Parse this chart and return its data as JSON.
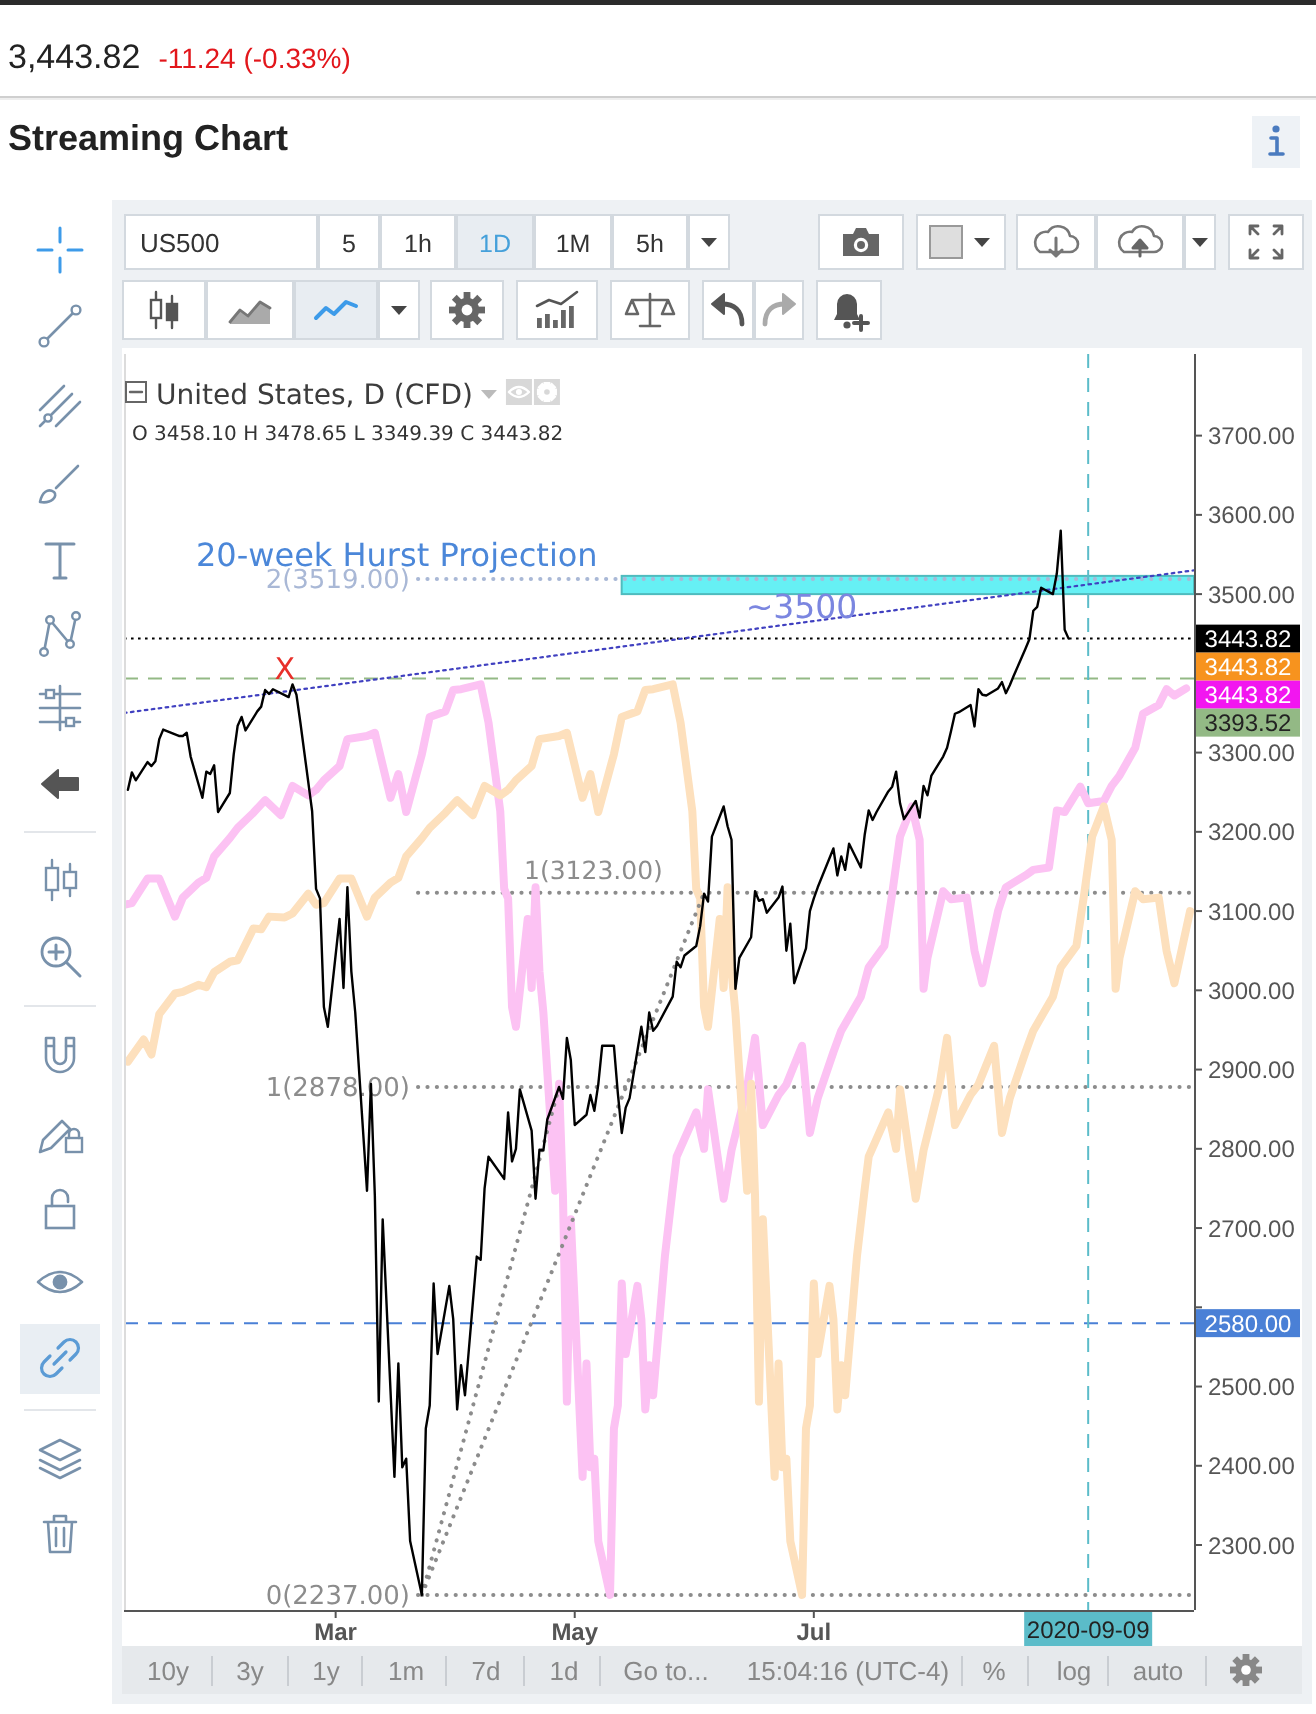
{
  "chart_data": {
    "type": "line",
    "title": "Streaming Chart",
    "xlim": [
      "2020-01-07",
      "2020-10-06"
    ],
    "xticks": [
      {
        "value": "2020-03-01",
        "label": "Mar"
      },
      {
        "value": "2020-05-01",
        "label": "May"
      },
      {
        "value": "2020-07-01",
        "label": "Jul"
      }
    ],
    "ylim": [
      2218,
      3803
    ],
    "yticks": [
      {
        "value": 2300,
        "label": "2300.00"
      },
      {
        "value": 2400,
        "label": "2400.00"
      },
      {
        "value": 2500,
        "label": "2500.00"
      },
      {
        "value": 2600,
        "label": null
      },
      {
        "value": 2700,
        "label": "2700.00"
      },
      {
        "value": 2800,
        "label": "2800.00"
      },
      {
        "value": 2900,
        "label": "2900.00"
      },
      {
        "value": 3000,
        "label": "3000.00"
      },
      {
        "value": 3100,
        "label": "3100.00"
      },
      {
        "value": 3200,
        "label": "3200.00"
      },
      {
        "value": 3300,
        "label": "3300.00"
      },
      {
        "value": 3400,
        "label": null
      },
      {
        "value": 3500,
        "label": "3500.00"
      },
      {
        "value": 3600,
        "label": "3600.00"
      },
      {
        "value": 3700,
        "label": "3700.00"
      }
    ],
    "series": [
      {
        "color": "#fcc2f3",
        "x": [
          "2020-01-07",
          "2020-01-09",
          "2020-01-13",
          "2020-01-16",
          "2020-01-20",
          "2020-01-22",
          "2020-01-26",
          "2020-01-28",
          "2020-01-30",
          "2020-02-03",
          "2020-02-05",
          "2020-02-09",
          "2020-02-12",
          "2020-02-16",
          "2020-02-19",
          "2020-02-23",
          "2020-02-25",
          "2020-02-27",
          "2020-03-02",
          "2020-03-04",
          "2020-03-09",
          "2020-03-11",
          "2020-03-15",
          "2020-03-17",
          "2020-03-19",
          "2020-03-23",
          "2020-03-25",
          "2020-03-29",
          "2020-03-31",
          "2020-04-02",
          "2020-04-07",
          "2020-04-09",
          "2020-04-12",
          "2020-04-13",
          "2020-04-14",
          "2020-04-15",
          "2020-04-16",
          "2020-04-19",
          "2020-04-20",
          "2020-04-21",
          "2020-04-22",
          "2020-04-23",
          "2020-04-26",
          "2020-04-27",
          "2020-04-28",
          "2020-04-29",
          "2020-04-30",
          "2020-05-03",
          "2020-05-04",
          "2020-05-05",
          "2020-05-06",
          "2020-05-07",
          "2020-05-10",
          "2020-05-11",
          "2020-05-12",
          "2020-05-13",
          "2020-05-14",
          "2020-05-17",
          "2020-05-18",
          "2020-05-19",
          "2020-05-20",
          "2020-05-21",
          "2020-05-24",
          "2020-05-26",
          "2020-05-27",
          "2020-06-01",
          "2020-06-03",
          "2020-06-04",
          "2020-06-08",
          "2020-06-10",
          "2020-06-14",
          "2020-06-16",
          "2020-06-18",
          "2020-06-22",
          "2020-06-24",
          "2020-06-28",
          "2020-06-30",
          "2020-07-02",
          "2020-07-06",
          "2020-07-08",
          "2020-07-13",
          "2020-07-15",
          "2020-07-19",
          "2020-07-21",
          "2020-07-23",
          "2020-07-26",
          "2020-07-28",
          "2020-07-29",
          "2020-07-30",
          "2020-08-03",
          "2020-08-05",
          "2020-08-09",
          "2020-08-11",
          "2020-08-13",
          "2020-08-17",
          "2020-08-19",
          "2020-08-24",
          "2020-08-26",
          "2020-08-30",
          "2020-09-01",
          "2020-09-03",
          "2020-09-07",
          "2020-09-09",
          "2020-09-13",
          "2020-09-15",
          "2020-09-17",
          "2020-09-21",
          "2020-09-23",
          "2020-09-27",
          "2020-09-29",
          "2020-10-01",
          "2020-10-04"
        ],
        "values": [
          3108,
          3110,
          3141,
          3141,
          3093,
          3117,
          3136,
          3142,
          3169,
          3192,
          3205,
          3224,
          3240,
          3221,
          3258,
          3246,
          3253,
          3265,
          3283,
          3317,
          3321,
          3325,
          3243,
          3273,
          3225,
          3298,
          3345,
          3352,
          3379,
          3380,
          3386,
          3338,
          3226,
          3128,
          3116,
          2979,
          2954,
          3090,
          3003,
          3130,
          3024,
          2972,
          2747,
          2882,
          2741,
          2481,
          2711,
          2386,
          2529,
          2398,
          2409,
          2305,
          2237,
          2447,
          2476,
          2630,
          2541,
          2627,
          2585,
          2471,
          2527,
          2489,
          2664,
          2750,
          2790,
          2846,
          2800,
          2875,
          2737,
          2798,
          2878,
          2940,
          2830,
          2868,
          2881,
          2930,
          2820,
          2864,
          2922,
          2949,
          2992,
          3029,
          3056,
          3122,
          3194,
          3232,
          3190,
          3002,
          3041,
          3125,
          3115,
          3117,
          3050,
          3009,
          3100,
          3130,
          3145,
          3152,
          3155,
          3227,
          3225,
          3257,
          3236,
          3239,
          3258,
          3271,
          3306,
          3349,
          3360,
          3380,
          3372,
          3381
        ]
      },
      {
        "color": "#fde0bd",
        "x": [
          "2020-01-08",
          "2020-01-12",
          "2020-01-14",
          "2020-01-16",
          "2020-01-20",
          "2020-01-22",
          "2020-01-26",
          "2020-01-28",
          "2020-01-30",
          "2020-02-03",
          "2020-02-05",
          "2020-02-09",
          "2020-02-11",
          "2020-02-13",
          "2020-02-17",
          "2020-02-19",
          "2020-02-23",
          "2020-02-25",
          "2020-02-27",
          "2020-03-02",
          "2020-03-05",
          "2020-03-09",
          "2020-03-11",
          "2020-03-15",
          "2020-03-17",
          "2020-03-19",
          "2020-03-23",
          "2020-03-25",
          "2020-03-29",
          "2020-04-01",
          "2020-04-05",
          "2020-04-08",
          "2020-04-12",
          "2020-04-14",
          "2020-04-16",
          "2020-04-20",
          "2020-04-22",
          "2020-04-27",
          "2020-04-29",
          "2020-05-03",
          "2020-05-05",
          "2020-05-07",
          "2020-05-11",
          "2020-05-13",
          "2020-05-17",
          "2020-05-19",
          "2020-05-21",
          "2020-05-26",
          "2020-05-28",
          "2020-05-31",
          "2020-06-01",
          "2020-06-02",
          "2020-06-03",
          "2020-06-04",
          "2020-06-07",
          "2020-06-08",
          "2020-06-09",
          "2020-06-10",
          "2020-06-11",
          "2020-06-14",
          "2020-06-15",
          "2020-06-16",
          "2020-06-17",
          "2020-06-18",
          "2020-06-21",
          "2020-06-22",
          "2020-06-23",
          "2020-06-24",
          "2020-06-25",
          "2020-06-28",
          "2020-06-29",
          "2020-06-30",
          "2020-07-01",
          "2020-07-02",
          "2020-07-05",
          "2020-07-06",
          "2020-07-07",
          "2020-07-08",
          "2020-07-09",
          "2020-07-12",
          "2020-07-14",
          "2020-07-15",
          "2020-07-20",
          "2020-07-22",
          "2020-07-23",
          "2020-07-27",
          "2020-07-29",
          "2020-08-02",
          "2020-08-04",
          "2020-08-06",
          "2020-08-10",
          "2020-08-12",
          "2020-08-16",
          "2020-08-18",
          "2020-08-20",
          "2020-08-24",
          "2020-08-26",
          "2020-08-31",
          "2020-09-02",
          "2020-09-06",
          "2020-09-08",
          "2020-09-10",
          "2020-09-13",
          "2020-09-15",
          "2020-09-16",
          "2020-09-17",
          "2020-09-21",
          "2020-09-23",
          "2020-09-27",
          "2020-09-29",
          "2020-10-01",
          "2020-10-05"
        ],
        "values": [
          2910,
          2938,
          2919,
          2970,
          2996,
          2998,
          3007,
          3004,
          3023,
          3036,
          3038,
          3078,
          3077,
          3093,
          3092,
          3097,
          3122,
          3108,
          3110,
          3141,
          3141,
          3093,
          3117,
          3136,
          3142,
          3169,
          3192,
          3205,
          3224,
          3240,
          3221,
          3258,
          3246,
          3253,
          3265,
          3283,
          3317,
          3321,
          3325,
          3243,
          3273,
          3225,
          3298,
          3345,
          3352,
          3379,
          3380,
          3386,
          3338,
          3226,
          3128,
          3116,
          2979,
          2954,
          3090,
          3003,
          3130,
          3024,
          2972,
          2747,
          2882,
          2741,
          2481,
          2711,
          2386,
          2529,
          2398,
          2409,
          2305,
          2237,
          2447,
          2476,
          2630,
          2541,
          2627,
          2585,
          2471,
          2527,
          2489,
          2664,
          2750,
          2790,
          2846,
          2800,
          2875,
          2737,
          2798,
          2878,
          2940,
          2830,
          2868,
          2881,
          2930,
          2820,
          2864,
          2922,
          2949,
          2992,
          3029,
          3056,
          3122,
          3194,
          3232,
          3190,
          3002,
          3041,
          3125,
          3115,
          3117,
          3050,
          3009,
          3100
        ]
      },
      {
        "type": "line",
        "color": "#4040c0",
        "line_style": "dotted",
        "x": [
          "2020-01-07",
          "2020-10-06"
        ],
        "values": [
          3350,
          3530
        ]
      },
      {
        "type": "line",
        "color": "#8c8c8c",
        "line_style": "dotted",
        "x": [
          "2020-03-23",
          "2020-04-27"
        ],
        "values": [
          2237,
          2878
        ]
      },
      {
        "type": "line",
        "color": "#8c8c8c",
        "line_style": "dotted",
        "x": [
          "2020-03-23",
          "2020-06-03"
        ],
        "values": [
          2237,
          3123
        ]
      },
      {
        "color": "#000000",
        "x": [
          "2020-01-08",
          "2020-01-09",
          "2020-01-10",
          "2020-01-13",
          "2020-01-14",
          "2020-01-15",
          "2020-01-16",
          "2020-01-17",
          "2020-01-21",
          "2020-01-22",
          "2020-01-23",
          "2020-01-24",
          "2020-01-27",
          "2020-01-28",
          "2020-01-29",
          "2020-01-30",
          "2020-01-31",
          "2020-02-03",
          "2020-02-04",
          "2020-02-05",
          "2020-02-06",
          "2020-02-07",
          "2020-02-10",
          "2020-02-11",
          "2020-02-12",
          "2020-02-13",
          "2020-02-14",
          "2020-02-18",
          "2020-02-19",
          "2020-02-20",
          "2020-02-21",
          "2020-02-24",
          "2020-02-25",
          "2020-02-26",
          "2020-02-27",
          "2020-02-28",
          "2020-03-02",
          "2020-03-03",
          "2020-03-04",
          "2020-03-05",
          "2020-03-06",
          "2020-03-09",
          "2020-03-10",
          "2020-03-11",
          "2020-03-12",
          "2020-03-13",
          "2020-03-16",
          "2020-03-17",
          "2020-03-18",
          "2020-03-19",
          "2020-03-20",
          "2020-03-23",
          "2020-03-24",
          "2020-03-25",
          "2020-03-26",
          "2020-03-27",
          "2020-03-30",
          "2020-03-31",
          "2020-04-01",
          "2020-04-02",
          "2020-04-03",
          "2020-04-06",
          "2020-04-07",
          "2020-04-08",
          "2020-04-09",
          "2020-04-13",
          "2020-04-14",
          "2020-04-15",
          "2020-04-16",
          "2020-04-17",
          "2020-04-20",
          "2020-04-21",
          "2020-04-22",
          "2020-04-23",
          "2020-04-24",
          "2020-04-27",
          "2020-04-28",
          "2020-04-29",
          "2020-04-30",
          "2020-05-01",
          "2020-05-04",
          "2020-05-05",
          "2020-05-06",
          "2020-05-07",
          "2020-05-08",
          "2020-05-11",
          "2020-05-12",
          "2020-05-13",
          "2020-05-14",
          "2020-05-15",
          "2020-05-18",
          "2020-05-19",
          "2020-05-20",
          "2020-05-21",
          "2020-05-22",
          "2020-05-26",
          "2020-05-27",
          "2020-05-28",
          "2020-05-29",
          "2020-06-01",
          "2020-06-02",
          "2020-06-03",
          "2020-06-04",
          "2020-06-05",
          "2020-06-08",
          "2020-06-09",
          "2020-06-10",
          "2020-06-11",
          "2020-06-12",
          "2020-06-15",
          "2020-06-16",
          "2020-06-17",
          "2020-06-18",
          "2020-06-19",
          "2020-06-22",
          "2020-06-23",
          "2020-06-24",
          "2020-06-25",
          "2020-06-26",
          "2020-06-29",
          "2020-06-30",
          "2020-07-01",
          "2020-07-02",
          "2020-07-06",
          "2020-07-07",
          "2020-07-08",
          "2020-07-09",
          "2020-07-10",
          "2020-07-13",
          "2020-07-14",
          "2020-07-15",
          "2020-07-16",
          "2020-07-17",
          "2020-07-20",
          "2020-07-21",
          "2020-07-22",
          "2020-07-23",
          "2020-07-24",
          "2020-07-27",
          "2020-07-28",
          "2020-07-29",
          "2020-07-30",
          "2020-07-31",
          "2020-08-03",
          "2020-08-04",
          "2020-08-05",
          "2020-08-06",
          "2020-08-07",
          "2020-08-10",
          "2020-08-11",
          "2020-08-12",
          "2020-08-13",
          "2020-08-14",
          "2020-08-17",
          "2020-08-18",
          "2020-08-19",
          "2020-08-20",
          "2020-08-21",
          "2020-08-24",
          "2020-08-25",
          "2020-08-26",
          "2020-08-27",
          "2020-08-28",
          "2020-08-31",
          "2020-09-01",
          "2020-09-02",
          "2020-09-03",
          "2020-09-04"
        ],
        "values": [
          3253,
          3275,
          3265,
          3288,
          3283,
          3289,
          3317,
          3329,
          3321,
          3321,
          3325,
          3295,
          3243,
          3276,
          3273,
          3284,
          3225,
          3249,
          3298,
          3334,
          3345,
          3328,
          3352,
          3358,
          3379,
          3374,
          3380,
          3370,
          3386,
          3373,
          3338,
          3226,
          3128,
          3116,
          2979,
          2954,
          3090,
          3003,
          3130,
          3024,
          2972,
          2747,
          2882,
          2741,
          2481,
          2711,
          2386,
          2529,
          2398,
          2409,
          2305,
          2237,
          2447,
          2476,
          2630,
          2541,
          2627,
          2585,
          2471,
          2527,
          2489,
          2664,
          2660,
          2750,
          2790,
          2762,
          2846,
          2784,
          2800,
          2875,
          2823,
          2737,
          2799,
          2798,
          2837,
          2878,
          2863,
          2940,
          2912,
          2830,
          2843,
          2868,
          2848,
          2881,
          2930,
          2930,
          2870,
          2820,
          2852,
          2864,
          2954,
          2922,
          2972,
          2949,
          2955,
          2992,
          3036,
          3029,
          3044,
          3056,
          3081,
          3122,
          3112,
          3194,
          3232,
          3207,
          3190,
          3002,
          3041,
          3067,
          3125,
          3113,
          3115,
          3098,
          3117,
          3131,
          3050,
          3084,
          3009,
          3053,
          3100,
          3116,
          3130,
          3179,
          3145,
          3169,
          3152,
          3185,
          3155,
          3197,
          3227,
          3215,
          3225,
          3251,
          3257,
          3276,
          3236,
          3216,
          3239,
          3218,
          3258,
          3246,
          3271,
          3295,
          3306,
          3327,
          3349,
          3351,
          3360,
          3333,
          3380,
          3373,
          3372,
          3381,
          3389,
          3375,
          3385,
          3397,
          3431,
          3443,
          3479,
          3484,
          3508,
          3500,
          3526,
          3580,
          3455,
          3443.82
        ]
      }
    ],
    "ref_lines": [
      {
        "axis": "y",
        "value": 3519,
        "label": "2(3519.00)",
        "color": "#a9b8d6",
        "line_style": "dotted"
      },
      {
        "axis": "y",
        "value": 3123,
        "label": "1(3123.00)",
        "color": "#8c8c8c",
        "line_style": "dotted"
      },
      {
        "axis": "y",
        "value": 2878,
        "label": "1(2878.00)",
        "color": "#8c8c8c",
        "line_style": "dotted"
      },
      {
        "axis": "y",
        "value": 2237,
        "label": "0(2237.00)",
        "color": "#8c8c8c",
        "line_style": "dotted"
      },
      {
        "axis": "y",
        "value": 3443.82,
        "label": "3443.82",
        "color": "#000000",
        "line_style": "dotted"
      },
      {
        "axis": "y",
        "value": 3393.52,
        "label": "3393.52",
        "color": "#93b985",
        "line_style": "dashed"
      },
      {
        "axis": "y",
        "value": 2580,
        "label": "2580.00",
        "color": "#4a80d6",
        "line_style": "dashed"
      },
      {
        "axis": "x",
        "value": "2020-09-09",
        "label": "2020-09-09",
        "color": "#5bbcc9",
        "line_style": "dashed"
      }
    ],
    "bands": [
      {
        "axis": "y",
        "from": 3500,
        "to": 3523,
        "label": "~3500",
        "color": "#66f0f4"
      }
    ],
    "annotations": [
      "3,443.82",
      "-11.24 (-0.33%)",
      "US500",
      "5",
      "1h",
      "1D",
      "1M",
      "5h",
      "United States, D (CFD)",
      "O 3458.10 H 3478.65 L 3349.39 C 3443.82",
      "20-week Hurst Projection",
      {
        "text": "X",
        "x": "2020-02-17",
        "y": 3405
      },
      "3443.82",
      "3443.82",
      "10y",
      "3y",
      "1y",
      "1m",
      "7d",
      "1d",
      "Go to...",
      "15:04:16 (UTC-4)",
      "%",
      "log",
      "auto"
    ]
  }
}
